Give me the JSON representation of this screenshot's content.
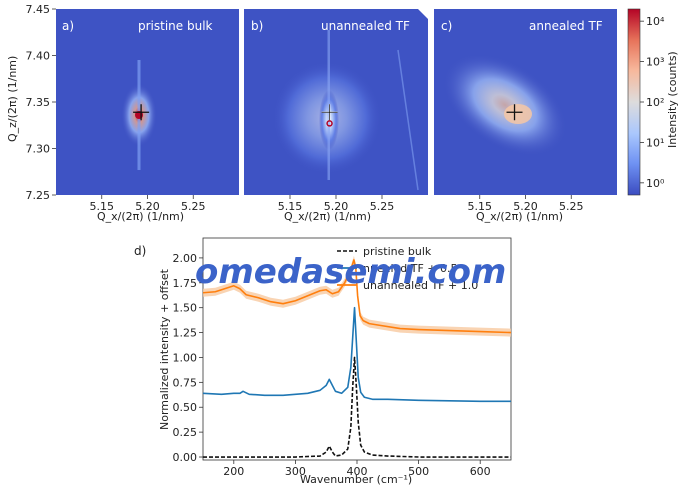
{
  "chart_data": [
    {
      "type": "heatmap",
      "panel_label": "a)",
      "title": "pristine bulk",
      "xlabel": "Q_x/(2π) (1/nm)",
      "ylabel": "Q_z/(2π) (1/nm)",
      "xticks": [
        "5.15",
        "5.20",
        "5.25"
      ],
      "yticks": [
        "7.45",
        "7.40",
        "7.35",
        "7.30",
        "7.25"
      ],
      "xlim": [
        5.1,
        5.3
      ],
      "ylim": [
        7.25,
        7.45
      ],
      "peak": {
        "qx": 5.193,
        "qz": 7.339
      },
      "cross_marker": {
        "qx": 5.193,
        "qz": 7.339
      },
      "circle_marker": null
    },
    {
      "type": "heatmap",
      "panel_label": "b)",
      "title": "unannealed TF",
      "xlabel": "Q_x/(2π) (1/nm)",
      "xticks": [
        "5.15",
        "5.20",
        "5.25"
      ],
      "xlim": [
        5.1,
        5.3
      ],
      "ylim": [
        7.25,
        7.45
      ],
      "peak": {
        "qx": 5.193,
        "qz": 7.33
      },
      "cross_marker": {
        "qx": 5.193,
        "qz": 7.339
      },
      "circle_marker": {
        "qx": 5.193,
        "qz": 7.327
      }
    },
    {
      "type": "heatmap",
      "panel_label": "c)",
      "title": "annealed TF",
      "xlabel": "Q_x/(2π) (1/nm)",
      "xticks": [
        "5.15",
        "5.20",
        "5.25"
      ],
      "xlim": [
        5.1,
        5.3
      ],
      "ylim": [
        7.25,
        7.45
      ],
      "peak": {
        "qx": 5.188,
        "qz": 7.339
      },
      "cross_marker": {
        "qx": 5.188,
        "qz": 7.339
      },
      "circle_marker": null,
      "colorbar": {
        "label": "Intensity (counts)",
        "scale": "log",
        "ticks": [
          "10⁰",
          "10¹",
          "10²",
          "10³",
          "10⁴"
        ],
        "range": [
          0.5,
          20000
        ],
        "colormap": [
          "#3b4cc0",
          "#6f92f3",
          "#aac7fd",
          "#dddcdc",
          "#f7b89c",
          "#e7745b",
          "#b40426"
        ]
      }
    },
    {
      "type": "line",
      "panel_label": "d)",
      "xlabel": "Wavenumber (cm⁻¹)",
      "ylabel": "Normalized intensity + offset",
      "xlim": [
        150,
        650
      ],
      "ylim": [
        -0.03,
        2.2
      ],
      "xticks": [
        "200",
        "300",
        "400",
        "500",
        "600"
      ],
      "yticks": [
        "0.00",
        "0.25",
        "0.50",
        "0.75",
        "1.00",
        "1.25",
        "1.50",
        "1.75",
        "2.00"
      ],
      "legend": [
        "pristine bulk",
        "annealed TF + 0.5",
        "unannealed TF + 1.0"
      ],
      "legend_visible": [
        "pristine bulk",
        "nnealed TF + 0.5",
        "unannealed TF + 1.0"
      ],
      "legend_position": "top-right",
      "series": [
        {
          "name": "pristine bulk",
          "color": "#111111",
          "dash": "dashed",
          "x": [
            150,
            200,
            250,
            300,
            340,
            350,
            355,
            360,
            365,
            375,
            385,
            390,
            393,
            396,
            399,
            402,
            406,
            412,
            425,
            450,
            500,
            600,
            650
          ],
          "y": [
            0.0,
            0.0,
            0.0,
            0.0,
            0.01,
            0.05,
            0.11,
            0.05,
            0.01,
            0.02,
            0.08,
            0.3,
            0.7,
            1.0,
            0.7,
            0.35,
            0.12,
            0.05,
            0.02,
            0.01,
            0.0,
            0.0,
            0.0
          ]
        },
        {
          "name": "annealed TF + 0.5",
          "color": "#1f77b4",
          "x": [
            150,
            180,
            200,
            210,
            215,
            225,
            250,
            280,
            300,
            320,
            340,
            350,
            355,
            360,
            365,
            375,
            385,
            390,
            393,
            396,
            399,
            402,
            406,
            412,
            425,
            450,
            500,
            600,
            650
          ],
          "y": [
            0.64,
            0.63,
            0.64,
            0.64,
            0.66,
            0.63,
            0.62,
            0.62,
            0.63,
            0.64,
            0.67,
            0.72,
            0.78,
            0.72,
            0.66,
            0.64,
            0.7,
            0.9,
            1.2,
            1.5,
            1.15,
            0.8,
            0.65,
            0.6,
            0.58,
            0.58,
            0.57,
            0.56,
            0.56
          ]
        },
        {
          "name": "unannealed TF + 1.0",
          "color": "#ff7f0e",
          "band_color": "#f8c9a0",
          "x": [
            150,
            170,
            185,
            200,
            210,
            220,
            240,
            260,
            280,
            300,
            320,
            340,
            350,
            360,
            370,
            380,
            390,
            395,
            398,
            401,
            405,
            410,
            420,
            440,
            470,
            500,
            550,
            600,
            650
          ],
          "y": [
            1.65,
            1.66,
            1.69,
            1.72,
            1.69,
            1.63,
            1.6,
            1.56,
            1.54,
            1.57,
            1.62,
            1.67,
            1.68,
            1.64,
            1.66,
            1.75,
            1.88,
            1.98,
            1.9,
            1.62,
            1.42,
            1.37,
            1.34,
            1.32,
            1.29,
            1.28,
            1.27,
            1.26,
            1.25
          ]
        }
      ]
    }
  ],
  "watermark": "omedasemi.com"
}
